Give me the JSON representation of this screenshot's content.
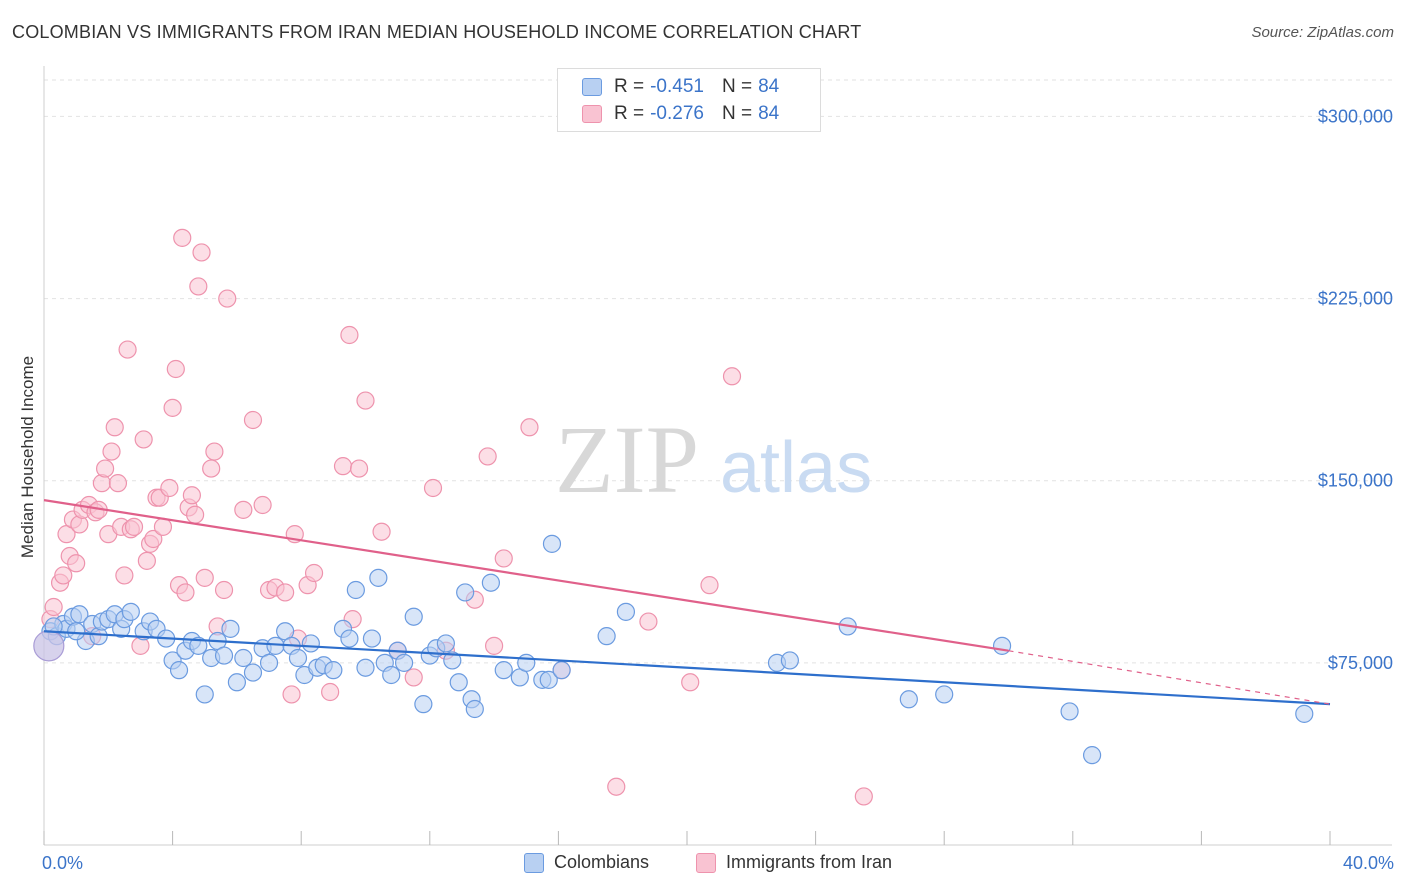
{
  "title": "COLOMBIAN VS IMMIGRANTS FROM IRAN MEDIAN HOUSEHOLD INCOME CORRELATION CHART",
  "source": "Source: ZipAtlas.com",
  "watermark": {
    "zip": "ZIP",
    "atlas": "atlas"
  },
  "legend_top": [
    {
      "r_label": "R =",
      "r_value": "-0.451",
      "n_label": "N =",
      "n_value": "84"
    },
    {
      "r_label": "R =",
      "r_value": "-0.276",
      "n_label": "N =",
      "n_value": "84"
    }
  ],
  "colors": {
    "blue_fill": "#b8d0f2",
    "blue_stroke": "#6b9be0",
    "blue_line": "#2e6fcc",
    "pink_fill": "#f9c3d2",
    "pink_stroke": "#ee93ad",
    "pink_line": "#e0608a",
    "axis_text": "#3b74c9",
    "grid": "#e2e2e2"
  },
  "chart_data": {
    "type": "scatter",
    "title": "COLOMBIAN VS IMMIGRANTS FROM IRAN MEDIAN HOUSEHOLD INCOME CORRELATION CHART",
    "xlabel": "",
    "ylabel": "Median Household Income",
    "xlim": [
      0,
      40
    ],
    "ylim": [
      0,
      315000
    ],
    "x_tick_labels": [
      "0.0%",
      "40.0%"
    ],
    "y_ticks": [
      75000,
      150000,
      225000,
      300000
    ],
    "y_tick_labels": [
      "$75,000",
      "$150,000",
      "$225,000",
      "$300,000"
    ],
    "grid": true,
    "legend_position": "bottom",
    "series": [
      {
        "name": "Colombians",
        "r": -0.451,
        "n": 84,
        "trend": {
          "x": [
            0,
            40
          ],
          "y": [
            88000,
            58000
          ]
        },
        "points": [
          [
            0.2,
            88000
          ],
          [
            0.4,
            86000
          ],
          [
            0.6,
            91000
          ],
          [
            0.7,
            89000
          ],
          [
            0.9,
            94000
          ],
          [
            1.1,
            95000
          ],
          [
            1.3,
            84000
          ],
          [
            1.5,
            91000
          ],
          [
            1.7,
            86000
          ],
          [
            1.8,
            92000
          ],
          [
            2.0,
            93000
          ],
          [
            2.2,
            95000
          ],
          [
            2.4,
            89000
          ],
          [
            2.5,
            93000
          ],
          [
            2.7,
            96000
          ],
          [
            3.1,
            88000
          ],
          [
            3.3,
            92000
          ],
          [
            3.5,
            89000
          ],
          [
            3.8,
            85000
          ],
          [
            4.0,
            76000
          ],
          [
            4.2,
            72000
          ],
          [
            4.4,
            80000
          ],
          [
            4.6,
            84000
          ],
          [
            4.8,
            82000
          ],
          [
            5.0,
            62000
          ],
          [
            5.2,
            77000
          ],
          [
            5.4,
            84000
          ],
          [
            5.6,
            78000
          ],
          [
            5.8,
            89000
          ],
          [
            6.0,
            67000
          ],
          [
            6.2,
            77000
          ],
          [
            6.5,
            71000
          ],
          [
            6.8,
            81000
          ],
          [
            7.0,
            75000
          ],
          [
            7.2,
            82000
          ],
          [
            7.5,
            88000
          ],
          [
            7.7,
            82000
          ],
          [
            7.9,
            77000
          ],
          [
            8.1,
            70000
          ],
          [
            8.3,
            83000
          ],
          [
            8.5,
            73000
          ],
          [
            8.7,
            74000
          ],
          [
            9.0,
            72000
          ],
          [
            9.3,
            89000
          ],
          [
            9.5,
            85000
          ],
          [
            9.7,
            105000
          ],
          [
            10.0,
            73000
          ],
          [
            10.2,
            85000
          ],
          [
            10.4,
            110000
          ],
          [
            10.6,
            75000
          ],
          [
            10.8,
            70000
          ],
          [
            11.0,
            80000
          ],
          [
            11.2,
            75000
          ],
          [
            11.5,
            94000
          ],
          [
            11.8,
            58000
          ],
          [
            12.0,
            78000
          ],
          [
            12.2,
            81000
          ],
          [
            12.5,
            83000
          ],
          [
            12.7,
            76000
          ],
          [
            12.9,
            67000
          ],
          [
            13.1,
            104000
          ],
          [
            13.3,
            60000
          ],
          [
            13.4,
            56000
          ],
          [
            13.9,
            108000
          ],
          [
            14.3,
            72000
          ],
          [
            14.8,
            69000
          ],
          [
            15.0,
            75000
          ],
          [
            15.5,
            68000
          ],
          [
            15.7,
            68000
          ],
          [
            16.1,
            72000
          ],
          [
            15.8,
            124000
          ],
          [
            17.5,
            86000
          ],
          [
            18.1,
            96000
          ],
          [
            22.8,
            75000
          ],
          [
            23.2,
            76000
          ],
          [
            25.0,
            90000
          ],
          [
            26.9,
            60000
          ],
          [
            28.0,
            62000
          ],
          [
            29.8,
            82000
          ],
          [
            31.9,
            55000
          ],
          [
            32.6,
            37000
          ],
          [
            39.2,
            54000
          ],
          [
            0.3,
            90000
          ],
          [
            1.0,
            88000
          ]
        ]
      },
      {
        "name": "Immigrants from Iran",
        "r": -0.276,
        "n": 84,
        "trend": {
          "x": [
            0,
            30
          ],
          "y": [
            142000,
            80000
          ]
        },
        "trend_dashed": {
          "x": [
            30,
            40
          ],
          "y": [
            80000,
            58000
          ]
        },
        "points": [
          [
            0.2,
            93000
          ],
          [
            0.3,
            98000
          ],
          [
            0.5,
            108000
          ],
          [
            0.6,
            111000
          ],
          [
            0.7,
            128000
          ],
          [
            0.8,
            119000
          ],
          [
            0.9,
            134000
          ],
          [
            1.0,
            116000
          ],
          [
            1.1,
            132000
          ],
          [
            1.2,
            138000
          ],
          [
            1.4,
            140000
          ],
          [
            1.5,
            86000
          ],
          [
            1.6,
            137000
          ],
          [
            1.7,
            138000
          ],
          [
            1.8,
            149000
          ],
          [
            1.9,
            155000
          ],
          [
            2.0,
            128000
          ],
          [
            2.1,
            162000
          ],
          [
            2.2,
            172000
          ],
          [
            2.3,
            149000
          ],
          [
            2.4,
            131000
          ],
          [
            2.5,
            111000
          ],
          [
            2.6,
            204000
          ],
          [
            2.7,
            130000
          ],
          [
            2.8,
            131000
          ],
          [
            3.0,
            82000
          ],
          [
            3.1,
            167000
          ],
          [
            3.2,
            117000
          ],
          [
            3.3,
            124000
          ],
          [
            3.4,
            126000
          ],
          [
            3.5,
            143000
          ],
          [
            3.6,
            143000
          ],
          [
            3.7,
            131000
          ],
          [
            3.9,
            147000
          ],
          [
            4.0,
            180000
          ],
          [
            4.1,
            196000
          ],
          [
            4.2,
            107000
          ],
          [
            4.3,
            250000
          ],
          [
            4.4,
            104000
          ],
          [
            4.5,
            139000
          ],
          [
            4.6,
            144000
          ],
          [
            4.7,
            136000
          ],
          [
            4.8,
            230000
          ],
          [
            4.9,
            244000
          ],
          [
            5.0,
            110000
          ],
          [
            5.2,
            155000
          ],
          [
            5.3,
            162000
          ],
          [
            5.4,
            90000
          ],
          [
            5.6,
            105000
          ],
          [
            5.7,
            225000
          ],
          [
            6.2,
            138000
          ],
          [
            6.5,
            175000
          ],
          [
            6.8,
            140000
          ],
          [
            7.0,
            105000
          ],
          [
            7.2,
            106000
          ],
          [
            7.5,
            104000
          ],
          [
            7.7,
            62000
          ],
          [
            7.8,
            128000
          ],
          [
            7.9,
            85000
          ],
          [
            8.2,
            107000
          ],
          [
            8.4,
            112000
          ],
          [
            8.9,
            63000
          ],
          [
            9.3,
            156000
          ],
          [
            9.5,
            210000
          ],
          [
            9.6,
            93000
          ],
          [
            9.8,
            155000
          ],
          [
            10.0,
            183000
          ],
          [
            10.5,
            129000
          ],
          [
            11.0,
            80000
          ],
          [
            11.5,
            69000
          ],
          [
            12.1,
            147000
          ],
          [
            12.5,
            80000
          ],
          [
            13.4,
            101000
          ],
          [
            13.8,
            160000
          ],
          [
            14.0,
            82000
          ],
          [
            14.3,
            118000
          ],
          [
            15.1,
            172000
          ],
          [
            16.1,
            72000
          ],
          [
            18.8,
            92000
          ],
          [
            20.1,
            67000
          ],
          [
            20.7,
            107000
          ],
          [
            21.4,
            193000
          ],
          [
            17.8,
            24000
          ],
          [
            25.5,
            20000
          ]
        ]
      }
    ]
  }
}
